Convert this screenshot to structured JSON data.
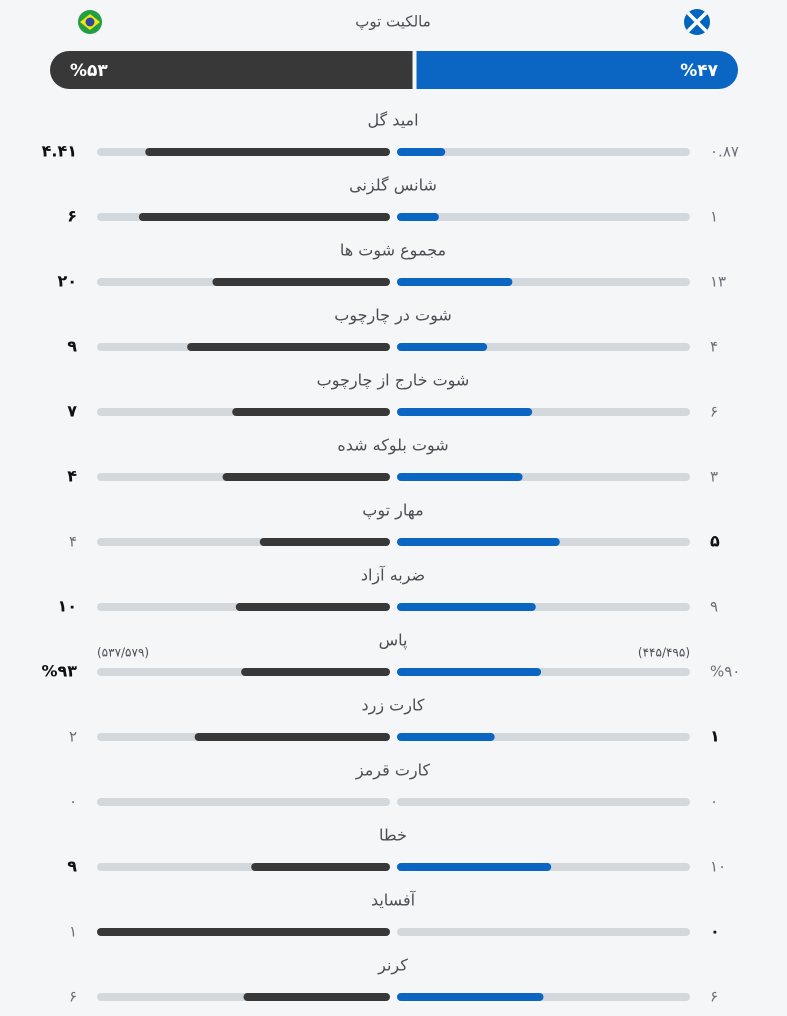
{
  "header": {
    "title": "مالکیت توپ"
  },
  "colors": {
    "home": "#383838",
    "away": "#0a66c2",
    "track": "#d3d8dc"
  },
  "possession": {
    "home": {
      "value": 53,
      "label": "%۵۳"
    },
    "away": {
      "value": 47,
      "label": "%۴۷"
    }
  },
  "stats": [
    {
      "title": "امید گل",
      "home": {
        "value": 4.41,
        "label": "۴.۴۱"
      },
      "away": {
        "value": 0.87,
        "label": "۰.۸۷"
      },
      "highlight": "home"
    },
    {
      "title": "شانس گلزنی",
      "home": {
        "value": 6,
        "label": "۶"
      },
      "away": {
        "value": 1,
        "label": "۱"
      },
      "highlight": "home"
    },
    {
      "title": "مجموع شوت ها",
      "home": {
        "value": 20,
        "label": "۲۰"
      },
      "away": {
        "value": 13,
        "label": "۱۳"
      },
      "highlight": "home"
    },
    {
      "title": "شوت در چارچوب",
      "home": {
        "value": 9,
        "label": "۹"
      },
      "away": {
        "value": 4,
        "label": "۴"
      },
      "highlight": "home"
    },
    {
      "title": "شوت خارج از چارچوب",
      "home": {
        "value": 7,
        "label": "۷"
      },
      "away": {
        "value": 6,
        "label": "۶"
      },
      "highlight": "home"
    },
    {
      "title": "شوت بلوکه شده",
      "home": {
        "value": 4,
        "label": "۴"
      },
      "away": {
        "value": 3,
        "label": "۳"
      },
      "highlight": "home"
    },
    {
      "title": "مهار توپ",
      "home": {
        "value": 4,
        "label": "۴"
      },
      "away": {
        "value": 5,
        "label": "۵"
      },
      "highlight": "away"
    },
    {
      "title": "ضربه آزاد",
      "home": {
        "value": 10,
        "label": "۱۰"
      },
      "away": {
        "value": 9,
        "label": "۹"
      },
      "highlight": "home"
    },
    {
      "title": "پاس",
      "home": {
        "value": 93,
        "label": "%۹۳",
        "detail": "(۵۳۷/۵۷۹)"
      },
      "away": {
        "value": 90,
        "label": "%۹۰",
        "detail": "(۴۴۵/۴۹۵)"
      },
      "highlight": "home"
    },
    {
      "title": "کارت زرد",
      "home": {
        "value": 2,
        "label": "۲"
      },
      "away": {
        "value": 1,
        "label": "۱"
      },
      "highlight": "away"
    },
    {
      "title": "کارت قرمز",
      "home": {
        "value": 0,
        "label": "۰"
      },
      "away": {
        "value": 0,
        "label": "۰"
      }
    },
    {
      "title": "خطا",
      "home": {
        "value": 9,
        "label": "۹"
      },
      "away": {
        "value": 10,
        "label": "۱۰"
      },
      "highlight": "home"
    },
    {
      "title": "آفساید",
      "home": {
        "value": 1,
        "label": "۱"
      },
      "away": {
        "value": 0,
        "label": "۰"
      },
      "highlight": "away"
    },
    {
      "title": "کرنر",
      "home": {
        "value": 6,
        "label": "۶"
      },
      "away": {
        "value": 6,
        "label": "۶"
      }
    }
  ]
}
